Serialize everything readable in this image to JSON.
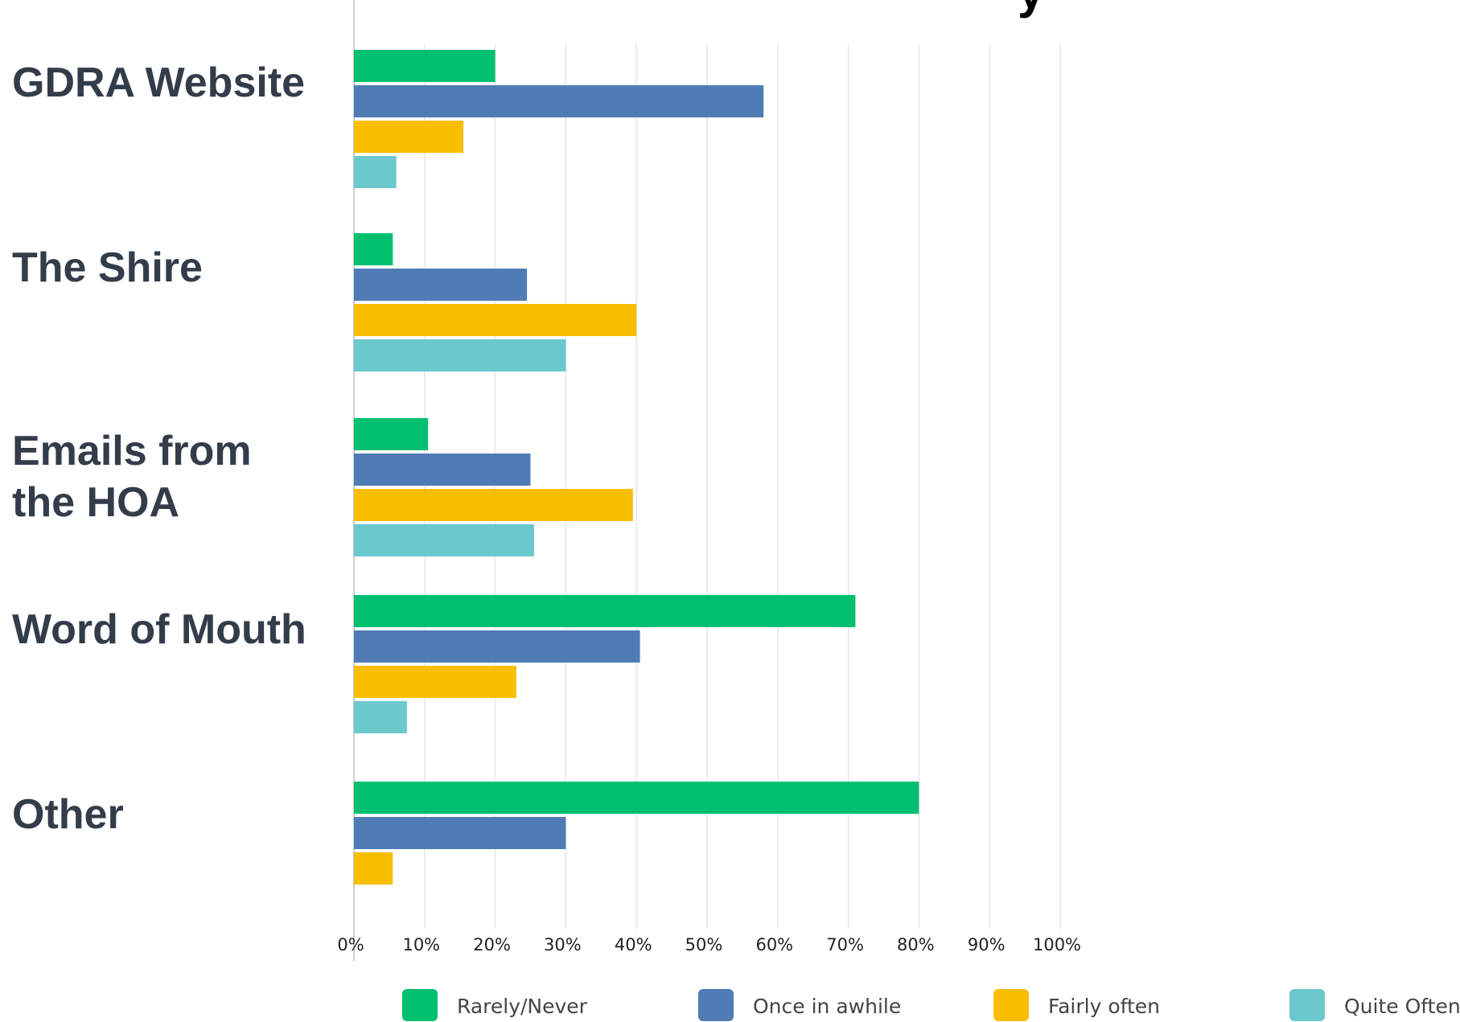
{
  "title_fragment": "y",
  "chart_data": {
    "type": "bar",
    "orientation": "horizontal",
    "categories": [
      "GDRA Website",
      "The Shire",
      "Emails from the HOA",
      "Word of Mouth",
      "Other"
    ],
    "category_lines": [
      [
        "GDRA Website"
      ],
      [
        "The Shire"
      ],
      [
        "Emails from",
        "the HOA"
      ],
      [
        "Word of Mouth"
      ],
      [
        "Other"
      ]
    ],
    "series": [
      {
        "name": "Rarely/Never",
        "color": "#00bf6f",
        "values": [
          20,
          5.5,
          10.5,
          71,
          80
        ]
      },
      {
        "name": "Once in awhile",
        "color": "#507cb6",
        "values": [
          58,
          24.5,
          25,
          40.5,
          30
        ]
      },
      {
        "name": "Fairly often",
        "color": "#f9be00",
        "values": [
          15.5,
          40,
          39.5,
          23,
          5.5
        ]
      },
      {
        "name": "Quite Often",
        "color": "#6bc8cd",
        "values": [
          6,
          30,
          25.5,
          7.5,
          null
        ]
      }
    ],
    "xlim": [
      0,
      100
    ],
    "ticks": [
      "0%",
      "10%",
      "20%",
      "30%",
      "40%",
      "50%",
      "60%",
      "70%",
      "80%",
      "90%",
      "100%"
    ],
    "grid": true,
    "legend_position": "bottom"
  }
}
